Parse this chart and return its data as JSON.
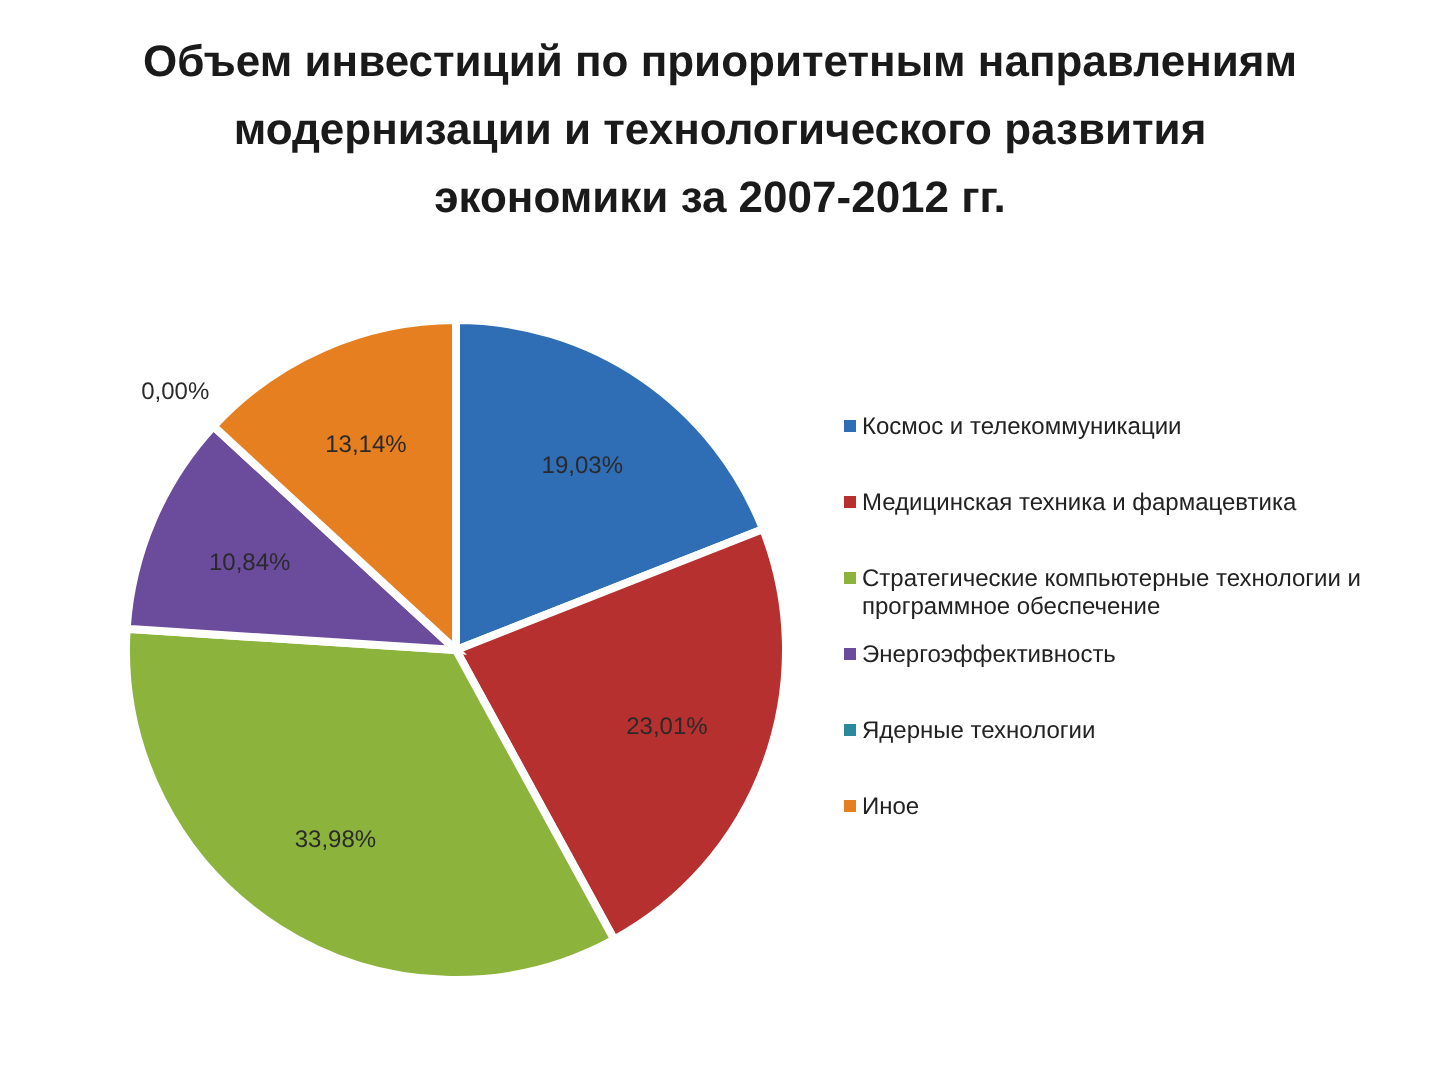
{
  "chart_data": {
    "type": "pie",
    "title": "Объем инвестиций по приоритетным направлениям модернизации и технологического развития экономики за 2007-2012 гг.",
    "categories": [
      "Космос и телекоммуникации",
      "Медицинская техника и фармацевтика",
      "Стратегические компьютерные технологии и программное обеспечение",
      "Энергоэффективность",
      "Ядерные технологии",
      "Иное"
    ],
    "values": [
      19.03,
      23.01,
      33.98,
      10.84,
      0.0,
      13.14
    ],
    "colors": [
      "#2f6db5",
      "#b5302e",
      "#8cb33c",
      "#6b4b9c",
      "#2a8a9c",
      "#e57f1f"
    ],
    "value_labels": [
      "19,03%",
      "23,01%",
      "33,98%",
      "10,84%",
      "0,00%",
      "13,14%"
    ],
    "legend": "right"
  }
}
